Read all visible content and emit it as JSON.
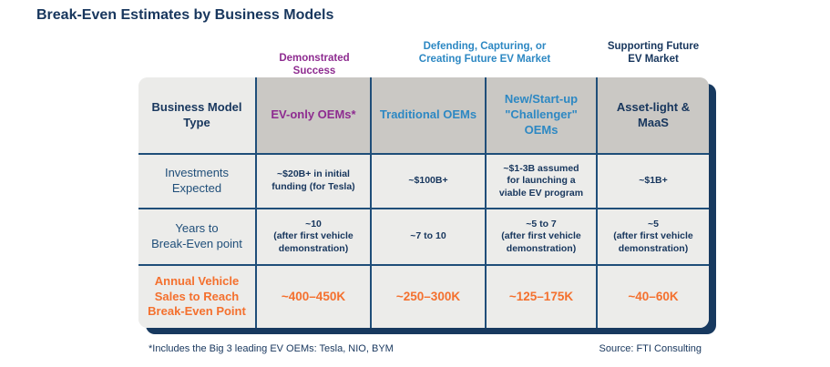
{
  "footnote": "*Includes the Big 3 leading EV OEMs: Tesla, NIO, BYM",
  "source": "Source: FTI Consulting",
  "colors": {
    "navy_text": "#17365d",
    "grid_line": "#1f4e79",
    "shadow_navy": "#17395f",
    "purple_accent": "#8e2c90",
    "blue_accent": "#2d88c3",
    "orange_accent": "#f4702e",
    "header_gray": "#cac8c4",
    "header_light_gray": "#ebebe9",
    "cell_background": "#ececea"
  },
  "chart_data": {
    "type": "table",
    "title": "Break-Even Estimates by Business Models",
    "column_groups": [
      {
        "label": "Demonstrated Success",
        "color": "#8e2c90",
        "spans_column_indices": [
          1
        ]
      },
      {
        "label": "Defending, Capturing, or\nCreating Future EV Market",
        "color": "#2d88c3",
        "spans_column_indices": [
          2,
          3
        ]
      },
      {
        "label": "Supporting Future\nEV Market",
        "color": "#17365d",
        "spans_column_indices": [
          4
        ]
      }
    ],
    "columns": [
      "Business Model\nType",
      "EV-only OEMs*",
      "Traditional OEMs",
      "New/Start-up\n\"Challenger\" OEMs",
      "Asset-light & MaaS"
    ],
    "rows": [
      {
        "label": "Investments\nExpected",
        "values": [
          "~$20B+ in initial\nfunding (for Tesla)",
          "~$100B+",
          "~$1-3B assumed\nfor launching a\nviable EV program",
          "~$1B+"
        ]
      },
      {
        "label": "Years to\nBreak-Even point",
        "values": [
          "~10\n(after first vehicle\ndemonstration)",
          "~7 to 10",
          "~5 to 7\n(after first vehicle\ndemonstration)",
          "~5\n(after first vehicle\ndemonstration)"
        ]
      },
      {
        "label": "Annual Vehicle\nSales to Reach\nBreak-Even Point",
        "values": [
          "~400–450K",
          "~250–300K",
          "~125–175K",
          "~40–60K"
        ]
      }
    ]
  }
}
